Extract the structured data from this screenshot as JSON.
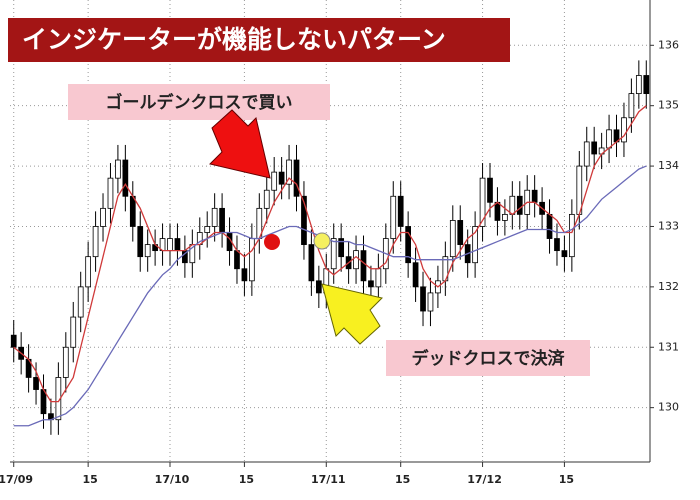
{
  "chart_data": {
    "type": "candlestick",
    "title": "インジケーターが機能しないパターン",
    "annotations": [
      "ゴールデンクロスで買い",
      "デッドクロスで決済"
    ],
    "categories": [
      "17/09",
      null,
      null,
      null,
      null,
      null,
      null,
      null,
      null,
      null,
      "15",
      null,
      null,
      null,
      null,
      null,
      null,
      null,
      null,
      null,
      null,
      "17/10",
      null,
      null,
      null,
      null,
      null,
      null,
      null,
      null,
      null,
      "15",
      null,
      null,
      null,
      null,
      null,
      null,
      null,
      null,
      null,
      null,
      "17/11",
      null,
      null,
      null,
      null,
      null,
      null,
      null,
      null,
      null,
      "15",
      null,
      null,
      null,
      null,
      null,
      null,
      null,
      null,
      null,
      null,
      "17/12",
      null,
      null,
      null,
      null,
      null,
      null,
      null,
      null,
      null,
      null,
      "15",
      null,
      null,
      null,
      null,
      null,
      null,
      null,
      null,
      null,
      null,
      null
    ],
    "open": [
      131.2,
      131.0,
      130.8,
      130.5,
      130.3,
      129.9,
      129.8,
      130.5,
      131.0,
      131.5,
      132.0,
      132.5,
      133.0,
      133.3,
      133.8,
      134.1,
      133.5,
      133.0,
      132.5,
      132.7,
      132.6,
      132.6,
      132.8,
      132.6,
      132.4,
      132.7,
      132.9,
      133.0,
      133.3,
      132.9,
      132.6,
      132.3,
      132.1,
      132.8,
      133.3,
      133.6,
      133.9,
      133.7,
      134.1,
      133.5,
      132.7,
      132.1,
      131.9,
      132.3,
      132.8,
      132.5,
      132.3,
      132.6,
      132.1,
      132.0,
      132.3,
      132.8,
      133.5,
      133.0,
      132.4,
      132.0,
      131.6,
      131.9,
      132.1,
      132.5,
      133.1,
      132.7,
      132.4,
      133.0,
      133.8,
      133.4,
      133.1,
      133.2,
      133.5,
      133.2,
      133.6,
      133.4,
      133.2,
      132.8,
      132.6,
      132.5,
      133.2,
      134.0,
      134.4,
      134.2,
      134.3,
      134.6,
      134.4,
      134.8,
      135.2,
      135.5
    ],
    "high": [
      131.45,
      131.25,
      131.05,
      130.75,
      130.55,
      130.15,
      130.75,
      131.25,
      131.75,
      132.25,
      132.75,
      133.25,
      133.55,
      134.05,
      134.35,
      134.35,
      133.75,
      133.25,
      132.95,
      132.95,
      133.05,
      133.05,
      133.05,
      132.85,
      132.95,
      133.15,
      133.25,
      133.55,
      133.55,
      133.15,
      132.85,
      132.55,
      133.05,
      133.55,
      133.85,
      134.15,
      134.15,
      134.35,
      134.35,
      133.75,
      132.95,
      132.35,
      132.55,
      133.05,
      133.05,
      132.75,
      132.85,
      132.85,
      132.35,
      132.55,
      133.05,
      133.75,
      133.75,
      133.25,
      132.65,
      132.25,
      132.15,
      132.35,
      132.75,
      133.35,
      133.35,
      132.95,
      133.25,
      134.05,
      134.05,
      133.65,
      133.45,
      133.75,
      133.75,
      133.85,
      133.85,
      133.65,
      133.45,
      133.05,
      132.85,
      133.45,
      134.25,
      134.65,
      134.65,
      134.55,
      134.85,
      134.85,
      135.05,
      135.45,
      135.75,
      135.75
    ],
    "low": [
      130.75,
      130.55,
      130.25,
      130.05,
      129.65,
      129.55,
      129.55,
      130.25,
      130.75,
      131.25,
      131.75,
      132.25,
      132.75,
      133.05,
      133.55,
      133.25,
      132.75,
      132.25,
      132.25,
      132.35,
      132.35,
      132.35,
      132.35,
      132.15,
      132.15,
      132.45,
      132.65,
      132.75,
      132.65,
      132.35,
      132.05,
      131.85,
      131.85,
      132.55,
      133.05,
      133.35,
      133.45,
      133.45,
      133.25,
      132.45,
      131.85,
      131.65,
      131.65,
      132.05,
      132.25,
      132.05,
      132.05,
      131.85,
      131.75,
      131.75,
      132.05,
      132.55,
      132.75,
      132.15,
      131.75,
      131.35,
      131.35,
      131.65,
      131.85,
      132.25,
      132.45,
      132.15,
      132.15,
      132.75,
      133.15,
      132.85,
      132.85,
      132.95,
      132.95,
      132.95,
      133.15,
      132.95,
      132.55,
      132.35,
      132.25,
      132.25,
      132.95,
      133.75,
      133.95,
      133.95,
      134.05,
      134.15,
      134.15,
      134.55,
      134.95,
      134.95
    ],
    "close": [
      131.0,
      130.8,
      130.5,
      130.3,
      129.9,
      129.8,
      130.5,
      131.0,
      131.5,
      132.0,
      132.5,
      133.0,
      133.3,
      133.8,
      134.1,
      133.5,
      133.0,
      132.5,
      132.7,
      132.6,
      132.8,
      132.8,
      132.6,
      132.4,
      132.7,
      132.9,
      133.0,
      133.3,
      132.9,
      132.6,
      132.3,
      132.1,
      132.8,
      133.3,
      133.6,
      133.9,
      133.7,
      134.1,
      133.5,
      132.7,
      132.1,
      131.9,
      132.3,
      132.8,
      132.5,
      132.3,
      132.6,
      132.1,
      132.0,
      132.3,
      132.8,
      133.5,
      133.0,
      132.4,
      132.0,
      131.6,
      131.9,
      132.1,
      132.5,
      133.1,
      132.7,
      132.4,
      133.0,
      133.8,
      133.4,
      133.1,
      133.2,
      133.5,
      133.2,
      133.6,
      133.4,
      133.2,
      132.8,
      132.6,
      132.5,
      133.2,
      134.0,
      134.4,
      134.2,
      134.3,
      134.6,
      134.4,
      134.8,
      135.2,
      135.5,
      135.2
    ],
    "up_color": "#ffffff",
    "down_color": "#000000",
    "lines": [
      {
        "color": "#d03a3a",
        "values": [
          131.0,
          130.9,
          130.8,
          130.6,
          130.3,
          130.1,
          130.1,
          130.3,
          130.5,
          131.0,
          131.5,
          132.0,
          132.5,
          133.0,
          133.5,
          133.7,
          133.5,
          133.3,
          133.0,
          132.7,
          132.6,
          132.6,
          132.6,
          132.6,
          132.7,
          132.7,
          132.8,
          132.9,
          132.9,
          132.8,
          132.6,
          132.5,
          132.6,
          132.8,
          133.1,
          133.4,
          133.6,
          133.8,
          133.7,
          133.4,
          133.0,
          132.6,
          132.3,
          132.2,
          132.3,
          132.4,
          132.5,
          132.4,
          132.3,
          132.3,
          132.4,
          132.7,
          132.9,
          132.9,
          132.7,
          132.3,
          132.1,
          132.0,
          132.1,
          132.4,
          132.6,
          132.8,
          132.9,
          133.1,
          133.3,
          133.4,
          133.3,
          133.2,
          133.3,
          133.4,
          133.4,
          133.3,
          133.2,
          133.1,
          132.9,
          132.9,
          133.2,
          133.6,
          134.0,
          134.2,
          134.3,
          134.4,
          134.5,
          134.7,
          134.9,
          135.0
        ]
      },
      {
        "color": "#6a6ab8",
        "values": [
          129.7,
          129.7,
          129.7,
          129.75,
          129.8,
          129.8,
          129.85,
          129.9,
          130.0,
          130.15,
          130.3,
          130.5,
          130.7,
          130.9,
          131.1,
          131.3,
          131.5,
          131.7,
          131.9,
          132.05,
          132.2,
          132.3,
          132.45,
          132.55,
          132.65,
          132.75,
          132.8,
          132.85,
          132.9,
          132.9,
          132.9,
          132.85,
          132.8,
          132.8,
          132.85,
          132.9,
          132.95,
          133.0,
          133.0,
          132.95,
          132.9,
          132.85,
          132.8,
          132.75,
          132.75,
          132.75,
          132.7,
          132.7,
          132.65,
          132.6,
          132.55,
          132.5,
          132.5,
          132.5,
          132.45,
          132.45,
          132.45,
          132.45,
          132.45,
          132.45,
          132.5,
          132.55,
          132.6,
          132.65,
          132.7,
          132.75,
          132.8,
          132.85,
          132.9,
          132.95,
          132.95,
          132.95,
          132.95,
          132.9,
          132.9,
          132.95,
          133.05,
          133.15,
          133.3,
          133.45,
          133.55,
          133.65,
          133.75,
          133.85,
          133.95,
          134.0
        ]
      }
    ],
    "ylim": [
      129.1,
      136.75
    ],
    "yticks": [
      130,
      131,
      132,
      133,
      134,
      135,
      136
    ],
    "grid": true
  }
}
